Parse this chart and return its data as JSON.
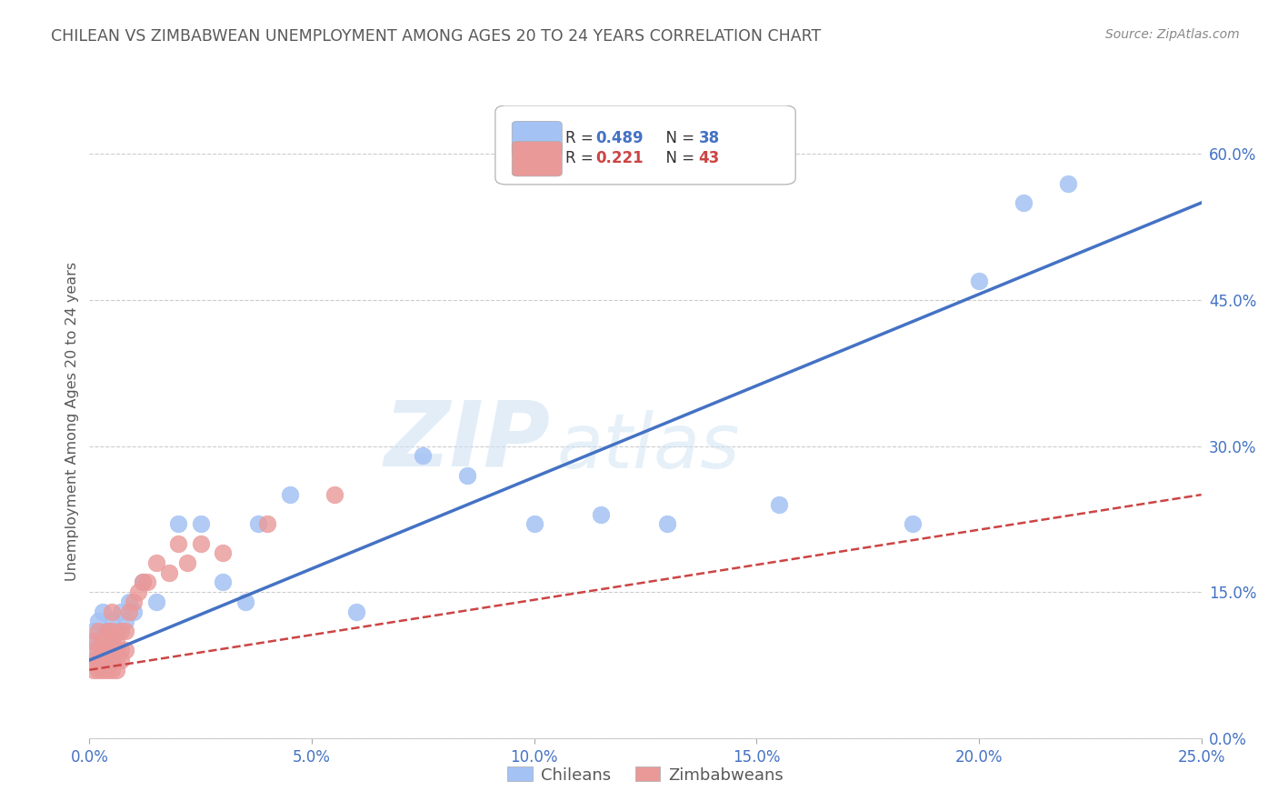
{
  "title": "CHILEAN VS ZIMBABWEAN UNEMPLOYMENT AMONG AGES 20 TO 24 YEARS CORRELATION CHART",
  "source": "Source: ZipAtlas.com",
  "ylabel": "Unemployment Among Ages 20 to 24 years",
  "watermark_zip": "ZIP",
  "watermark_atlas": "atlas",
  "xlim": [
    0.0,
    0.25
  ],
  "ylim": [
    0.0,
    0.65
  ],
  "xticks": [
    0.0,
    0.05,
    0.1,
    0.15,
    0.2,
    0.25
  ],
  "xticklabels": [
    "0.0%",
    "5.0%",
    "10.0%",
    "15.0%",
    "20.0%",
    "25.0%"
  ],
  "yticks": [
    0.0,
    0.15,
    0.3,
    0.45,
    0.6
  ],
  "yticklabels": [
    "0.0%",
    "15.0%",
    "30.0%",
    "45.0%",
    "60.0%"
  ],
  "legend_r_chilean": "R = ",
  "legend_r_val_chilean": "0.489",
  "legend_n_chilean": "  N = ",
  "legend_n_val_chilean": "38",
  "legend_r_zimbabwean": "R = ",
  "legend_r_val_zimbabwean": "0.221",
  "legend_n_zimbabwean": "  N = ",
  "legend_n_val_zimbabwean": "43",
  "chilean_color": "#a4c2f4",
  "zimbabwean_color": "#ea9999",
  "chilean_line_color": "#4472c4",
  "zimbabwean_line_color": "#cc4444",
  "background_color": "#ffffff",
  "grid_color": "#cccccc",
  "title_color": "#595959",
  "axis_label_color": "#4472c4",
  "ylabel_color": "#595959",
  "source_color": "#888888",
  "chilean_x": [
    0.001,
    0.001,
    0.002,
    0.002,
    0.002,
    0.003,
    0.003,
    0.003,
    0.004,
    0.004,
    0.005,
    0.005,
    0.005,
    0.006,
    0.006,
    0.007,
    0.008,
    0.009,
    0.01,
    0.012,
    0.015,
    0.02,
    0.025,
    0.03,
    0.035,
    0.038,
    0.045,
    0.06,
    0.075,
    0.085,
    0.1,
    0.115,
    0.13,
    0.155,
    0.185,
    0.2,
    0.21,
    0.22
  ],
  "chilean_y": [
    0.09,
    0.11,
    0.08,
    0.1,
    0.12,
    0.08,
    0.1,
    0.13,
    0.09,
    0.11,
    0.08,
    0.1,
    0.12,
    0.09,
    0.11,
    0.13,
    0.12,
    0.14,
    0.13,
    0.16,
    0.14,
    0.22,
    0.22,
    0.16,
    0.14,
    0.22,
    0.25,
    0.13,
    0.29,
    0.27,
    0.22,
    0.23,
    0.22,
    0.24,
    0.22,
    0.47,
    0.55,
    0.57
  ],
  "zimbabwean_x": [
    0.001,
    0.001,
    0.001,
    0.002,
    0.002,
    0.002,
    0.002,
    0.003,
    0.003,
    0.003,
    0.003,
    0.004,
    0.004,
    0.004,
    0.004,
    0.005,
    0.005,
    0.005,
    0.005,
    0.005,
    0.005,
    0.006,
    0.006,
    0.006,
    0.006,
    0.007,
    0.007,
    0.007,
    0.008,
    0.008,
    0.009,
    0.01,
    0.011,
    0.012,
    0.013,
    0.015,
    0.018,
    0.02,
    0.022,
    0.025,
    0.03,
    0.04,
    0.055
  ],
  "zimbabwean_y": [
    0.07,
    0.08,
    0.1,
    0.07,
    0.08,
    0.09,
    0.11,
    0.07,
    0.08,
    0.09,
    0.1,
    0.07,
    0.08,
    0.09,
    0.11,
    0.07,
    0.08,
    0.09,
    0.1,
    0.11,
    0.13,
    0.07,
    0.08,
    0.09,
    0.1,
    0.08,
    0.09,
    0.11,
    0.09,
    0.11,
    0.13,
    0.14,
    0.15,
    0.16,
    0.16,
    0.18,
    0.17,
    0.2,
    0.18,
    0.2,
    0.19,
    0.22,
    0.25
  ],
  "chilean_line_x0": 0.0,
  "chilean_line_y0": 0.08,
  "chilean_line_x1": 0.25,
  "chilean_line_y1": 0.55,
  "zimbabwean_line_x0": 0.0,
  "zimbabwean_line_y0": 0.07,
  "zimbabwean_line_x1": 0.25,
  "zimbabwean_line_y1": 0.25
}
